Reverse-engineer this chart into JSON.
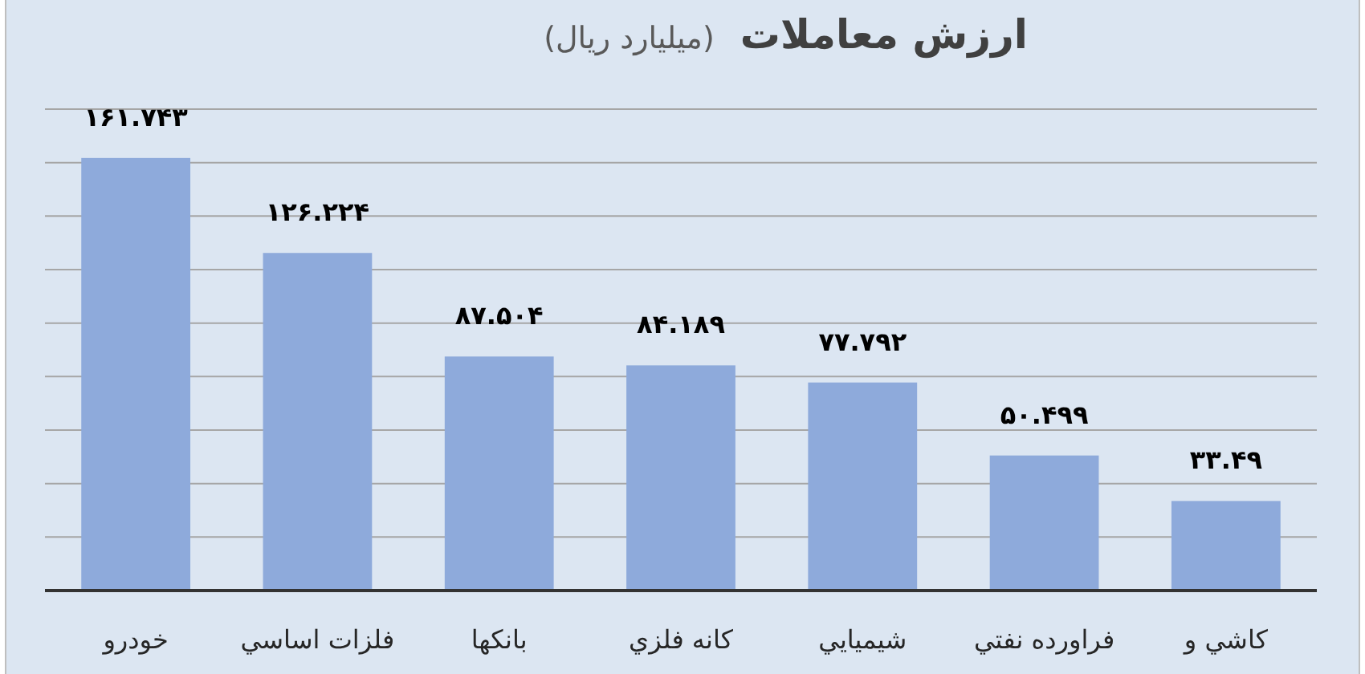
{
  "chart_data": {
    "type": "bar",
    "title": "ارزش معاملات",
    "subtitle": "(میلیارد ریال)",
    "categories": [
      "خودرو",
      "فلزات اساسي",
      "بانكها",
      "كانه فلزي",
      "شيميايي",
      "فراورده نفتي",
      "كاشي و"
    ],
    "values": [
      161.743,
      126.224,
      87.504,
      84.189,
      77.792,
      50.499,
      33.49
    ],
    "value_labels": [
      "۱۶۱.۷۴۳",
      "۱۲۶.۲۲۴",
      "۸۷.۵۰۴",
      "۸۴.۱۸۹",
      "۷۷.۷۹۲",
      "۵۰.۴۹۹",
      "۳۳.۴۹"
    ],
    "color": "#8eaadb",
    "ylim": [
      0,
      180
    ],
    "yticks": [
      {
        "value": 0,
        "label": null
      },
      {
        "value": 20,
        "label": null
      },
      {
        "value": 40,
        "label": null
      },
      {
        "value": 60,
        "label": null
      },
      {
        "value": 80,
        "label": null
      },
      {
        "value": 100,
        "label": null
      },
      {
        "value": 120,
        "label": null
      },
      {
        "value": 140,
        "label": null
      },
      {
        "value": 160,
        "label": null
      },
      {
        "value": 180,
        "label": null
      }
    ],
    "grid": "y",
    "tick_labels": "x"
  }
}
